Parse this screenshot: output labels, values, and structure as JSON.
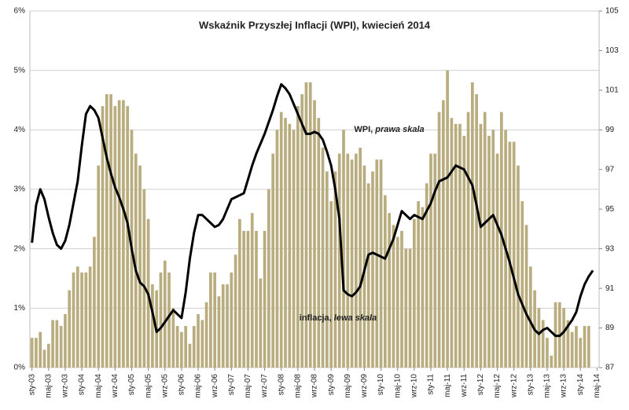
{
  "chart_data": {
    "type": "combo",
    "title": "Wskaźnik Przyszłej Inflacji (WPI), kwiecień 2014",
    "annotations": [
      {
        "parts": [
          "WPI, ",
          "prawa skala"
        ]
      },
      {
        "parts": [
          "inflacja, ",
          "lewa skala"
        ]
      }
    ],
    "categories": [
      "sty-03",
      null,
      null,
      null,
      "maj-03",
      null,
      null,
      null,
      "wrz-03",
      null,
      null,
      null,
      "sty-04",
      null,
      null,
      null,
      "maj-04",
      null,
      null,
      null,
      "wrz-04",
      null,
      null,
      null,
      "sty-05",
      null,
      null,
      null,
      "maj-05",
      null,
      null,
      null,
      "wrz-05",
      null,
      null,
      null,
      "sty-06",
      null,
      null,
      null,
      "maj-06",
      null,
      null,
      null,
      "wrz-06",
      null,
      null,
      null,
      "sty-07",
      null,
      null,
      null,
      "maj-07",
      null,
      null,
      null,
      "wrz-07",
      null,
      null,
      null,
      "sty-08",
      null,
      null,
      null,
      "maj-08",
      null,
      null,
      null,
      "wrz-08",
      null,
      null,
      null,
      "sty-09",
      null,
      null,
      null,
      "maj-09",
      null,
      null,
      null,
      "wrz-09",
      null,
      null,
      null,
      "sty-10",
      null,
      null,
      null,
      "maj-10",
      null,
      null,
      null,
      "wrz-10",
      null,
      null,
      null,
      "sty-11",
      null,
      null,
      null,
      "maj-11",
      null,
      null,
      null,
      "wrz-11",
      null,
      null,
      null,
      "sty-12",
      null,
      null,
      null,
      "maj-12",
      null,
      null,
      null,
      "wrz-12",
      null,
      null,
      null,
      "sty-13",
      null,
      null,
      null,
      "maj-13",
      null,
      null,
      null,
      "wrz-13",
      null,
      null,
      null,
      "sty-14",
      null,
      null,
      null,
      "maj-14"
    ],
    "series": [
      {
        "type": "bar",
        "axis": "y",
        "color": "#b9ad80",
        "values": [
          0.5,
          0.5,
          0.6,
          0.3,
          0.4,
          0.8,
          0.8,
          0.7,
          0.9,
          1.3,
          1.6,
          1.7,
          1.6,
          1.6,
          1.7,
          2.2,
          3.4,
          4.4,
          4.6,
          4.6,
          4.4,
          4.5,
          4.5,
          4.4,
          4.0,
          3.6,
          3.4,
          3.0,
          2.5,
          1.4,
          1.3,
          1.6,
          1.8,
          1.6,
          1.0,
          0.7,
          0.6,
          0.7,
          0.4,
          0.7,
          0.9,
          0.8,
          1.1,
          1.6,
          1.6,
          1.2,
          1.4,
          1.4,
          1.6,
          1.9,
          2.5,
          2.3,
          2.3,
          2.6,
          2.3,
          1.5,
          2.3,
          3.0,
          3.6,
          4.0,
          4.3,
          4.2,
          4.1,
          4.0,
          4.4,
          4.6,
          4.8,
          4.8,
          4.5,
          4.2,
          3.7,
          3.3,
          2.8,
          3.3,
          3.6,
          4.0,
          3.6,
          3.5,
          3.6,
          3.7,
          3.4,
          3.1,
          3.3,
          3.5,
          3.5,
          2.9,
          2.6,
          2.4,
          2.2,
          2.3,
          2.0,
          2.0,
          2.5,
          2.8,
          2.7,
          3.1,
          3.6,
          3.6,
          4.3,
          4.5,
          5.0,
          4.2,
          4.1,
          4.1,
          3.9,
          4.3,
          4.8,
          4.6,
          4.1,
          4.3,
          3.9,
          4.0,
          3.6,
          4.3,
          4.0,
          3.8,
          3.8,
          3.4,
          2.8,
          2.4,
          1.7,
          1.3,
          1.0,
          0.8,
          0.5,
          0.2,
          1.1,
          1.1,
          1.0,
          0.8,
          0.6,
          0.7,
          0.5,
          0.7,
          0.7,
          null,
          null
        ]
      },
      {
        "type": "line",
        "axis": "y2",
        "color": "#000000",
        "values": [
          93.3,
          95.2,
          96.0,
          95.5,
          94.6,
          93.8,
          93.2,
          93.0,
          93.4,
          94.2,
          95.3,
          96.4,
          98.2,
          99.8,
          100.2,
          100.0,
          99.6,
          98.6,
          97.6,
          96.8,
          96.1,
          95.6,
          95.0,
          94.3,
          93.0,
          91.9,
          91.3,
          91.1,
          90.7,
          89.8,
          88.8,
          89.0,
          89.3,
          89.6,
          89.9,
          89.7,
          89.5,
          90.8,
          92.5,
          93.8,
          94.7,
          94.7,
          94.5,
          94.3,
          94.1,
          94.2,
          94.5,
          95.0,
          95.5,
          95.6,
          95.7,
          95.8,
          96.5,
          97.2,
          97.8,
          98.3,
          98.8,
          99.4,
          100.0,
          100.7,
          101.3,
          101.1,
          100.8,
          100.3,
          99.8,
          99.3,
          98.8,
          98.8,
          98.9,
          98.8,
          98.5,
          97.9,
          97.2,
          96.0,
          94.5,
          90.9,
          90.7,
          90.6,
          90.8,
          91.1,
          91.9,
          92.7,
          92.8,
          92.7,
          92.6,
          92.5,
          93.0,
          93.5,
          94.2,
          94.9,
          94.7,
          94.5,
          94.7,
          94.6,
          94.5,
          94.9,
          95.3,
          95.9,
          96.4,
          96.5,
          96.6,
          96.9,
          97.2,
          97.1,
          97.0,
          96.6,
          96.2,
          95.2,
          94.1,
          94.3,
          94.5,
          94.7,
          94.2,
          93.7,
          93.0,
          92.3,
          91.5,
          90.7,
          90.2,
          89.7,
          89.3,
          88.9,
          88.7,
          88.9,
          89.0,
          88.8,
          88.6,
          88.6,
          88.8,
          89.1,
          89.4,
          89.8,
          90.6,
          91.2,
          91.6,
          91.9,
          null
        ]
      }
    ],
    "ylim": [
      0,
      6
    ],
    "yticks": [
      {
        "value": 0,
        "label": "0%"
      },
      {
        "value": 1,
        "label": "1%"
      },
      {
        "value": 2,
        "label": "2%"
      },
      {
        "value": 3,
        "label": "3%"
      },
      {
        "value": 4,
        "label": "4%"
      },
      {
        "value": 5,
        "label": "5%"
      },
      {
        "value": 6,
        "label": "6%"
      }
    ],
    "y2lim": [
      87,
      105
    ],
    "y2ticks": [
      87,
      89,
      91,
      93,
      95,
      97,
      99,
      101,
      103,
      105
    ],
    "grid": true
  }
}
